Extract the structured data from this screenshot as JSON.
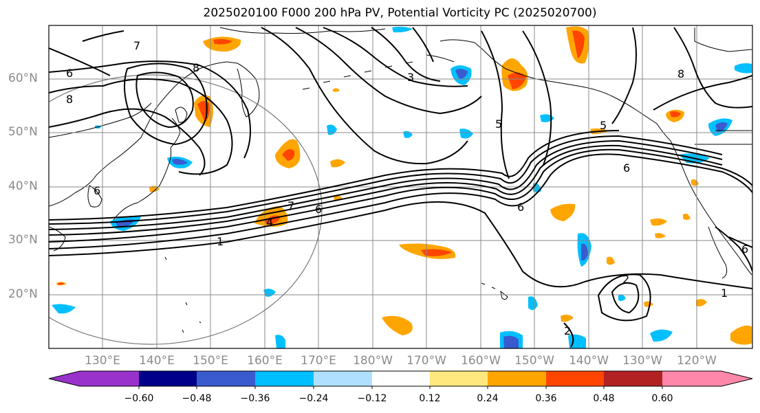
{
  "title": "2025020100 F000 200 hPa PV, Potential Vorticity PC (2025020700)",
  "lat_labels": [
    "60°N",
    "50°N",
    "40°N",
    "30°N",
    "20°N"
  ],
  "lon_labels": [
    "130°E",
    "140°E",
    "150°E",
    "160°E",
    "170°E",
    "180°W",
    "170°W",
    "160°W",
    "150°W",
    "140°W",
    "130°W",
    "120°W"
  ],
  "colorbar": {
    "ticks": [
      "−0.60",
      "−0.48",
      "−0.36",
      "−0.24",
      "−0.12",
      "0.12",
      "0.24",
      "0.36",
      "0.48",
      "0.60"
    ],
    "colors": [
      "#9932CC",
      "#00008B",
      "#3A5BCF",
      "#00BFFF",
      "#B0E0FF",
      "#FFFFFF",
      "#FFE97F",
      "#FFA500",
      "#FF4500",
      "#B22222",
      "#FF88AA"
    ]
  },
  "contour_labels": [
    "6",
    "7",
    "8",
    "8",
    "6",
    "7",
    "6",
    "1",
    "5",
    "6",
    "6",
    "8",
    "5",
    "2",
    "2",
    "1",
    "4",
    "6",
    "3"
  ],
  "colors": {
    "contour": "#000000",
    "coast": "#000000",
    "grid": "#888888",
    "circle": "#777777"
  }
}
